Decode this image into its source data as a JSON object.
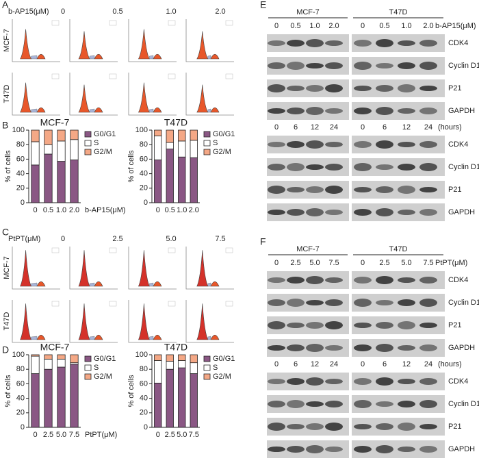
{
  "panels": {
    "A": {
      "label": "A",
      "dose_label": "b-AP15(μM)",
      "doses": [
        "0",
        "0.5",
        "1.0",
        "2.0"
      ],
      "rows": [
        "MCF-7",
        "T47D"
      ]
    },
    "B": {
      "label": "B"
    },
    "C": {
      "label": "C",
      "dose_label": "PtPT(μM)",
      "doses": [
        "0",
        "2.5",
        "5.0",
        "7.5"
      ],
      "rows": [
        "MCF-7",
        "T47D"
      ]
    },
    "D": {
      "label": "D"
    },
    "E": {
      "label": "E",
      "cell_lines": [
        "MCF-7",
        "T47D"
      ],
      "doses": [
        "0",
        "0.5",
        "1.0",
        "2.0"
      ],
      "dose_unit": "b-AP15(μM)",
      "times": [
        "0",
        "6",
        "12",
        "24"
      ],
      "time_unit": "(hours)",
      "proteins": [
        "CDK4",
        "Cyclin D1",
        "P21",
        "GAPDH"
      ]
    },
    "F": {
      "label": "F",
      "cell_lines": [
        "MCF-7",
        "T47D"
      ],
      "doses": [
        "0",
        "2.5",
        "5.0",
        "7.5"
      ],
      "dose_unit": "PtPT(μM)",
      "times": [
        "0",
        "6",
        "12",
        "24"
      ],
      "time_unit": "(hours)",
      "proteins": [
        "CDK4",
        "Cyclin D1",
        "P21",
        "GAPDH"
      ]
    }
  },
  "chart_data": [
    {
      "type": "bar",
      "stacked": true,
      "title": "MCF-7",
      "ylabel": "% of cells",
      "xlabel": "b-AP15(μM)",
      "categories": [
        "0",
        "0.5",
        "1.0",
        "2.0"
      ],
      "ylim": [
        0,
        100
      ],
      "yticks": [
        0,
        20,
        40,
        60,
        80,
        100
      ],
      "legend": "right",
      "series": [
        {
          "name": "G0/G1",
          "color": "#8a5784",
          "values": [
            52,
            67,
            57,
            59
          ]
        },
        {
          "name": "S",
          "color": "#ffffff",
          "values": [
            32,
            13,
            28,
            28
          ]
        },
        {
          "name": "G2/M",
          "color": "#f4a886",
          "values": [
            16,
            20,
            15,
            13
          ]
        }
      ]
    },
    {
      "type": "bar",
      "stacked": true,
      "title": "T47D",
      "ylabel": "% of cells",
      "categories": [
        "0",
        "0.5",
        "1.0",
        "2.0"
      ],
      "ylim": [
        0,
        100
      ],
      "yticks": [
        0,
        20,
        40,
        60,
        80,
        100
      ],
      "legend": "right",
      "series": [
        {
          "name": "G0/G1",
          "color": "#8a5784",
          "values": [
            59,
            74,
            63,
            62
          ]
        },
        {
          "name": "S",
          "color": "#ffffff",
          "values": [
            33,
            9,
            22,
            24
          ]
        },
        {
          "name": "G2/M",
          "color": "#f4a886",
          "values": [
            8,
            17,
            15,
            14
          ]
        }
      ]
    },
    {
      "type": "bar",
      "stacked": true,
      "title": "MCF-7",
      "ylabel": "% of cells",
      "xlabel": "PtPT(μM)",
      "categories": [
        "0",
        "2.5",
        "5.0",
        "7.5"
      ],
      "ylim": [
        0,
        100
      ],
      "yticks": [
        0,
        20,
        40,
        60,
        80,
        100
      ],
      "legend": "right",
      "series": [
        {
          "name": "G0/G1",
          "color": "#8a5784",
          "values": [
            74,
            80,
            83,
            87
          ]
        },
        {
          "name": "S",
          "color": "#ffffff",
          "values": [
            24,
            14,
            11,
            2
          ]
        },
        {
          "name": "G2/M",
          "color": "#f4a886",
          "values": [
            2,
            6,
            6,
            11
          ]
        }
      ]
    },
    {
      "type": "bar",
      "stacked": true,
      "title": "T47D",
      "ylabel": "% of cells",
      "categories": [
        "0",
        "2.5",
        "5.0",
        "7.5"
      ],
      "ylim": [
        0,
        100
      ],
      "yticks": [
        0,
        20,
        40,
        60,
        80,
        100
      ],
      "legend": "right",
      "series": [
        {
          "name": "G0/G1",
          "color": "#8a5784",
          "values": [
            61,
            80,
            82,
            74
          ]
        },
        {
          "name": "S",
          "color": "#ffffff",
          "values": [
            31,
            11,
            10,
            15
          ]
        },
        {
          "name": "G2/M",
          "color": "#f4a886",
          "values": [
            8,
            9,
            8,
            11
          ]
        }
      ]
    }
  ]
}
